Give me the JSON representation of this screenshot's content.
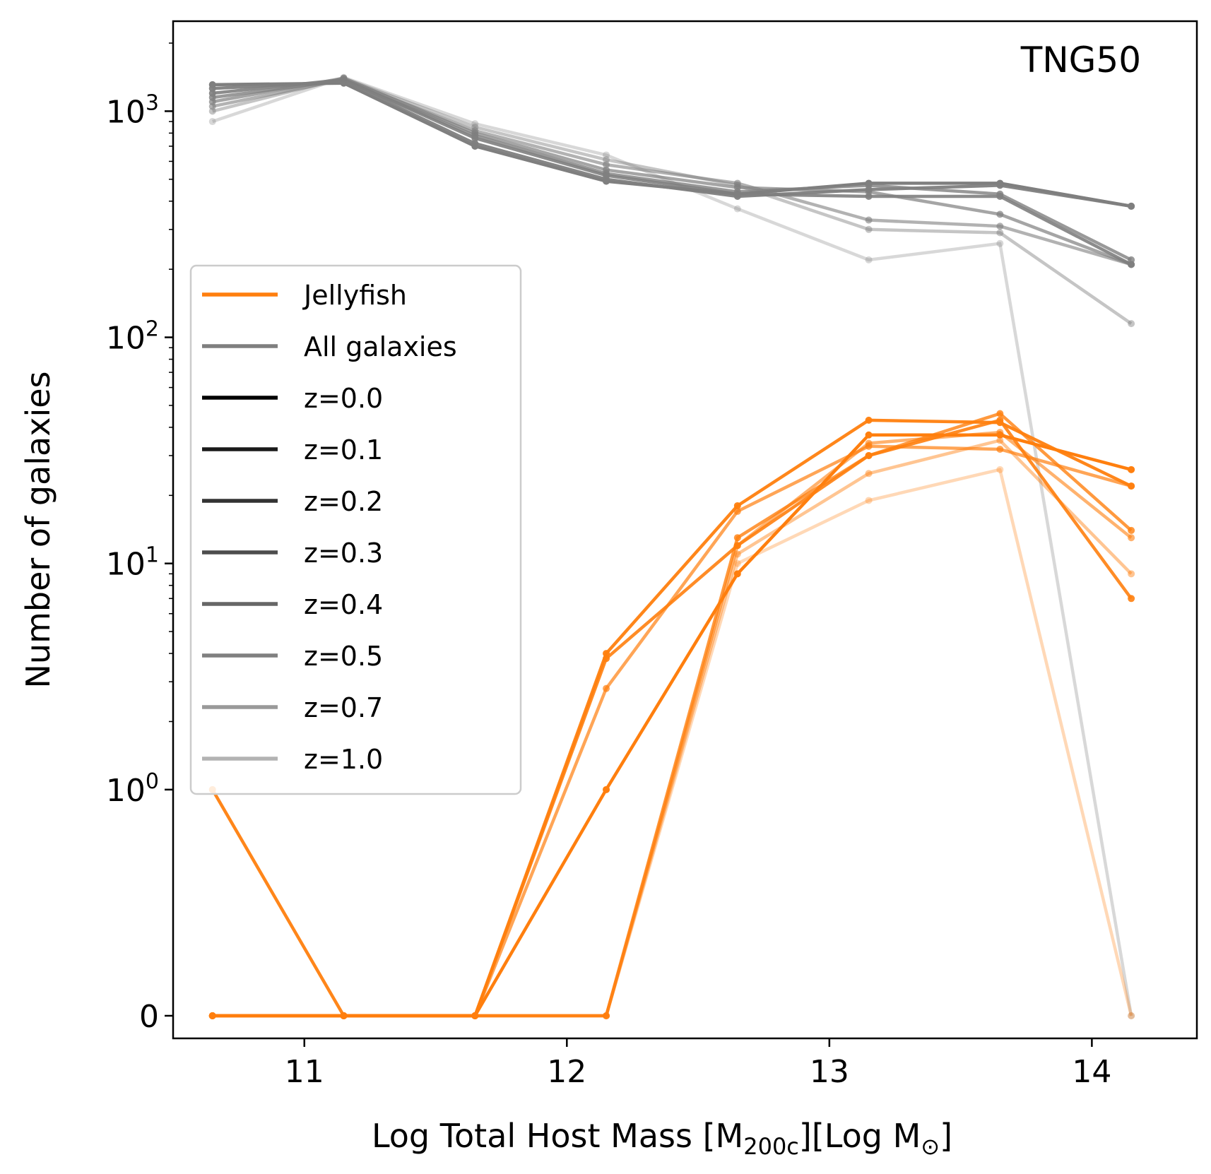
{
  "chart_data": {
    "type": "line",
    "title": "",
    "annotation": "TNG50",
    "xlabel": "Log Total Host Mass [M200c][Log M☉]",
    "xlabel_parts": {
      "prefix": "Log Total Host Mass [M",
      "sub1": "200c",
      "middle": "][Log M",
      "sub2": "⊙",
      "suffix": "]"
    },
    "ylabel": "Number of galaxies",
    "yscale": "symlog",
    "xlim": [
      10.5,
      14.4
    ],
    "ylim": [
      -0.1,
      2500
    ],
    "x_ticks": [
      {
        "value": 11,
        "label": "11"
      },
      {
        "value": 12,
        "label": "12"
      },
      {
        "value": 13,
        "label": "13"
      },
      {
        "value": 14,
        "label": "14"
      }
    ],
    "y_ticks": [
      {
        "value": 0,
        "base": "0",
        "exp": ""
      },
      {
        "value": 1,
        "base": "10",
        "exp": "0"
      },
      {
        "value": 10,
        "base": "10",
        "exp": "1"
      },
      {
        "value": 100,
        "base": "10",
        "exp": "2"
      },
      {
        "value": 1000,
        "base": "10",
        "exp": "3"
      }
    ],
    "x": [
      10.65,
      11.15,
      11.65,
      12.15,
      12.65,
      13.15,
      13.65,
      14.15
    ],
    "colors": {
      "jellyfish": "#ff7f0e",
      "all": "#7f7f7f"
    },
    "series": [
      {
        "name": "z=0.0",
        "alpha": 1.0,
        "all": [
          1310,
          1330,
          700,
          490,
          430,
          480,
          480,
          380
        ],
        "jellyfish": [
          0,
          0,
          0,
          1,
          9,
          37,
          37,
          26
        ]
      },
      {
        "name": "z=0.1",
        "alpha": 0.95,
        "all": [
          1260,
          1350,
          720,
          500,
          420,
          450,
          470,
          380
        ],
        "jellyfish": [
          1,
          0,
          0,
          4,
          18,
          43,
          42,
          22
        ]
      },
      {
        "name": "z=0.2",
        "alpha": 0.9,
        "all": [
          1200,
          1380,
          760,
          520,
          430,
          420,
          420,
          210
        ],
        "jellyfish": [
          0,
          0,
          0,
          3.8,
          12,
          30,
          43,
          7
        ]
      },
      {
        "name": "z=0.3",
        "alpha": 0.8,
        "all": [
          1150,
          1370,
          780,
          530,
          440,
          470,
          430,
          220
        ],
        "jellyfish": [
          0,
          0,
          0,
          0,
          13,
          30,
          46,
          14
        ]
      },
      {
        "name": "z=0.4",
        "alpha": 0.7,
        "all": [
          1100,
          1400,
          800,
          550,
          460,
          440,
          350,
          210
        ],
        "jellyfish": [
          0,
          0,
          0,
          2.8,
          17,
          33,
          32,
          22
        ]
      },
      {
        "name": "z=0.5",
        "alpha": 0.6,
        "all": [
          1050,
          1380,
          820,
          580,
          480,
          330,
          310,
          210
        ],
        "jellyfish": [
          0,
          0,
          0,
          0,
          12,
          34,
          38,
          13
        ]
      },
      {
        "name": "z=0.7",
        "alpha": 0.45,
        "all": [
          1000,
          1400,
          850,
          610,
          470,
          300,
          290,
          115
        ],
        "jellyfish": [
          0,
          0,
          0,
          0,
          11,
          25,
          35,
          9
        ]
      },
      {
        "name": "z=1.0",
        "alpha": 0.3,
        "all": [
          900,
          1410,
          880,
          640,
          370,
          220,
          260,
          0
        ],
        "jellyfish": [
          0,
          0,
          0,
          0,
          10,
          19,
          26,
          0
        ]
      }
    ],
    "legend": {
      "placement": "center-left",
      "entries": [
        {
          "label": "Jellyfish",
          "color": "#ff7f0e"
        },
        {
          "label": "All galaxies",
          "color": "#7f7f7f"
        },
        {
          "label": "z=0.0",
          "color": "#000000"
        },
        {
          "label": "z=0.1",
          "color": "#1a1a1a"
        },
        {
          "label": "z=0.2",
          "color": "#333333"
        },
        {
          "label": "z=0.3",
          "color": "#4d4d4d"
        },
        {
          "label": "z=0.4",
          "color": "#666666"
        },
        {
          "label": "z=0.5",
          "color": "#808080"
        },
        {
          "label": "z=0.7",
          "color": "#999999"
        },
        {
          "label": "z=1.0",
          "color": "#b3b3b3"
        }
      ]
    }
  }
}
